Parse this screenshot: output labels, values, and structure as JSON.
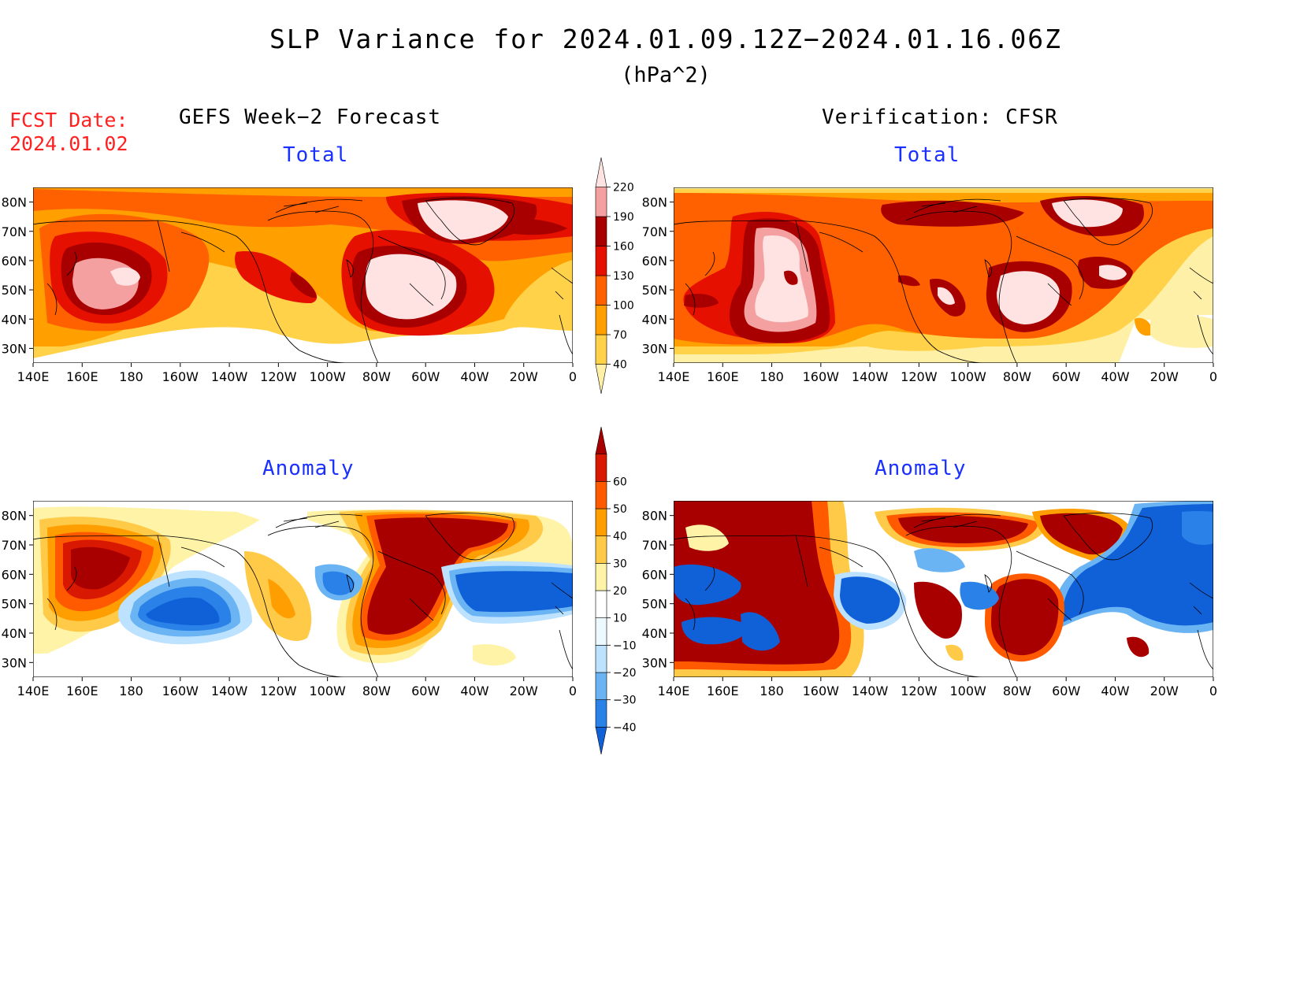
{
  "title": "SLP Variance for 2024.01.09.12Z−2024.01.16.06Z",
  "units": "(hPa^2)",
  "fcst_date_label": "FCST Date:",
  "fcst_date_value": "2024.01.02",
  "left_header": "GEFS Week−2 Forecast",
  "right_header": "Verification: CFSR",
  "panel_titles": {
    "top_left": "Total",
    "top_right": "Total",
    "bottom_left": "Anomaly",
    "bottom_right": "Anomaly"
  },
  "lon_ticks": [
    "140E",
    "160E",
    "180",
    "160W",
    "140W",
    "120W",
    "100W",
    "80W",
    "60W",
    "40W",
    "20W",
    "0"
  ],
  "lat_ticks": [
    "80N",
    "70N",
    "60N",
    "50N",
    "40N",
    "30N"
  ],
  "colorbars": {
    "total": {
      "levels": [
        "40",
        "70",
        "100",
        "130",
        "160",
        "190",
        "220"
      ],
      "colors": [
        "#fff0a8",
        "#ffd24a",
        "#ff9f00",
        "#ff6000",
        "#e51000",
        "#a80000",
        "#f4a0a0",
        "#ffe2e2"
      ]
    },
    "anomaly": {
      "levels": [
        "−40",
        "−30",
        "−20",
        "−10",
        "10",
        "20",
        "30",
        "40",
        "50",
        "60"
      ],
      "colors": [
        "#1060d8",
        "#2a82e8",
        "#6ab4f4",
        "#bce2ff",
        "#ecfaff",
        "#ffffff",
        "#fff3a8",
        "#ffca48",
        "#ff9e00",
        "#ff5a00",
        "#d81800",
        "#a80000"
      ]
    }
  }
}
